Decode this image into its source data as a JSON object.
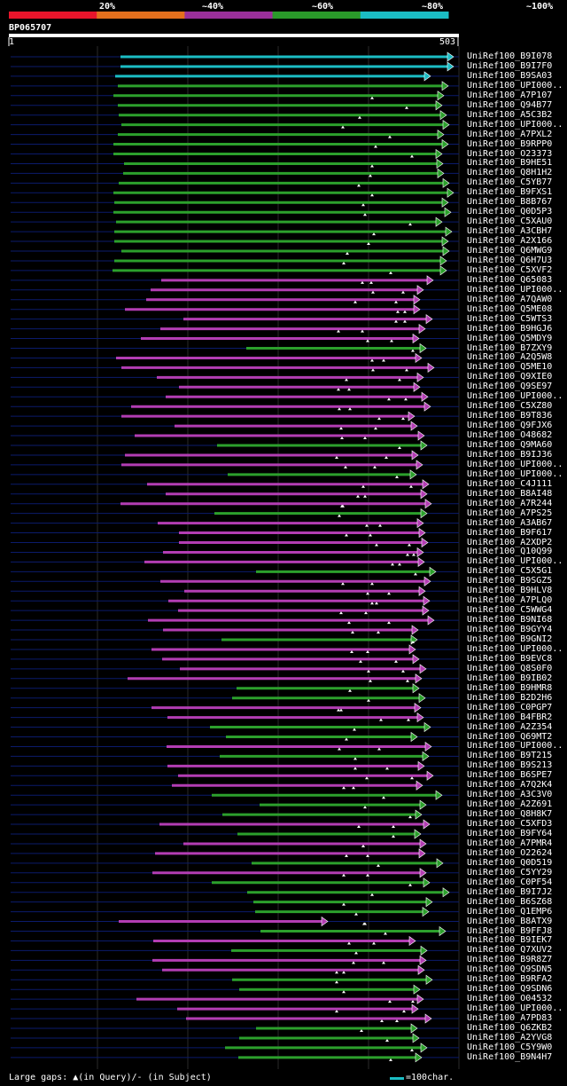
{
  "query": {
    "name": "BP065707",
    "start": "1",
    "end": "503"
  },
  "identity_scale": {
    "labels": [
      "20%",
      "~40%",
      "~60%",
      "~80%",
      "~100%"
    ],
    "colors": [
      "#e8152b",
      "#e4701d",
      "#9a2f9a",
      "#2a9a2a",
      "#1bbdc4"
    ]
  },
  "colors": {
    "cyan": "#1bbdc4",
    "green": "#2ca02c",
    "purple": "#b33db3",
    "line": "#0b1b6b",
    "grid": "#2a2a2a"
  },
  "hits": [
    {
      "id": "UniRef100_B9I078",
      "c": "cyan"
    },
    {
      "id": "UniRef100_B9I7F0",
      "c": "cyan"
    },
    {
      "id": "UniRef100_B9SA03",
      "c": "cyan"
    },
    {
      "id": "UniRef100_UPI000..",
      "c": "green"
    },
    {
      "id": "UniRef100_A7P107",
      "c": "green"
    },
    {
      "id": "UniRef100_Q94B77",
      "c": "green"
    },
    {
      "id": "UniRef100_A5C3B2",
      "c": "green"
    },
    {
      "id": "UniRef100_UPI000..",
      "c": "green"
    },
    {
      "id": "UniRef100_A7PXL2",
      "c": "green"
    },
    {
      "id": "UniRef100_B9RPP0",
      "c": "green"
    },
    {
      "id": "UniRef100_O23373",
      "c": "green"
    },
    {
      "id": "UniRef100_B9HE51",
      "c": "green"
    },
    {
      "id": "UniRef100_Q8H1H2",
      "c": "green"
    },
    {
      "id": "UniRef100_C5YB77",
      "c": "green"
    },
    {
      "id": "UniRef100_B9FXS1",
      "c": "green"
    },
    {
      "id": "UniRef100_B8B767",
      "c": "green"
    },
    {
      "id": "UniRef100_Q0D5P3",
      "c": "green"
    },
    {
      "id": "UniRef100_C5XAU0",
      "c": "green"
    },
    {
      "id": "UniRef100_A3CBH7",
      "c": "green"
    },
    {
      "id": "UniRef100_A2X166",
      "c": "green"
    },
    {
      "id": "UniRef100_Q6MWG9",
      "c": "green"
    },
    {
      "id": "UniRef100_Q6H7U3",
      "c": "green"
    },
    {
      "id": "UniRef100_C5XVF2",
      "c": "green"
    },
    {
      "id": "UniRef100_Q65083",
      "c": "purple"
    },
    {
      "id": "UniRef100_UPI000..",
      "c": "purple"
    },
    {
      "id": "UniRef100_A7QAW0",
      "c": "purple"
    },
    {
      "id": "UniRef100_Q5ME08",
      "c": "purple"
    },
    {
      "id": "UniRef100_C5WTS3",
      "c": "purple"
    },
    {
      "id": "UniRef100_B9HGJ6",
      "c": "purple"
    },
    {
      "id": "UniRef100_Q5MDY9",
      "c": "purple"
    },
    {
      "id": "UniRef100_B7ZXY9",
      "c": "green"
    },
    {
      "id": "UniRef100_A2Q5W8",
      "c": "purple"
    },
    {
      "id": "UniRef100_Q5ME10",
      "c": "purple"
    },
    {
      "id": "UniRef100_Q9XIE0",
      "c": "purple"
    },
    {
      "id": "UniRef100_Q9SE97",
      "c": "purple"
    },
    {
      "id": "UniRef100_UPI000..",
      "c": "purple"
    },
    {
      "id": "UniRef100_C5XZ80",
      "c": "purple"
    },
    {
      "id": "UniRef100_B9T836",
      "c": "purple"
    },
    {
      "id": "UniRef100_Q9FJX6",
      "c": "purple"
    },
    {
      "id": "UniRef100_O48682",
      "c": "purple"
    },
    {
      "id": "UniRef100_Q9MA60",
      "c": "green"
    },
    {
      "id": "UniRef100_B9IJ36",
      "c": "purple"
    },
    {
      "id": "UniRef100_UPI000..",
      "c": "purple"
    },
    {
      "id": "UniRef100_UPI000..",
      "c": "green"
    },
    {
      "id": "UniRef100_C4J111",
      "c": "purple"
    },
    {
      "id": "UniRef100_B8AI48",
      "c": "purple"
    },
    {
      "id": "UniRef100_A7R244",
      "c": "purple"
    },
    {
      "id": "UniRef100_A7PS25",
      "c": "green"
    },
    {
      "id": "UniRef100_A3AB67",
      "c": "purple"
    },
    {
      "id": "UniRef100_B9F617",
      "c": "purple"
    },
    {
      "id": "UniRef100_A2XDP2",
      "c": "purple"
    },
    {
      "id": "UniRef100_Q10Q99",
      "c": "purple"
    },
    {
      "id": "UniRef100_UPI000..",
      "c": "purple"
    },
    {
      "id": "UniRef100_C5X5G1",
      "c": "green"
    },
    {
      "id": "UniRef100_B9SGZ5",
      "c": "purple"
    },
    {
      "id": "UniRef100_B9HLV8",
      "c": "purple"
    },
    {
      "id": "UniRef100_A7PLQ0",
      "c": "purple"
    },
    {
      "id": "UniRef100_C5WWG4",
      "c": "purple"
    },
    {
      "id": "UniRef100_B9NI68",
      "c": "purple"
    },
    {
      "id": "UniRef100_B9GYY4",
      "c": "purple"
    },
    {
      "id": "UniRef100_B9GNI2",
      "c": "green"
    },
    {
      "id": "UniRef100_UPI000..",
      "c": "purple"
    },
    {
      "id": "UniRef100_B9EVC8",
      "c": "purple"
    },
    {
      "id": "UniRef100_Q8S0F0",
      "c": "purple"
    },
    {
      "id": "UniRef100_B9IB02",
      "c": "purple"
    },
    {
      "id": "UniRef100_B9HMR8",
      "c": "green"
    },
    {
      "id": "UniRef100_B2D2H6",
      "c": "green"
    },
    {
      "id": "UniRef100_C0PGP7",
      "c": "purple"
    },
    {
      "id": "UniRef100_B4FBR2",
      "c": "purple"
    },
    {
      "id": "UniRef100_A2Z354",
      "c": "green"
    },
    {
      "id": "UniRef100_Q69MT2",
      "c": "green"
    },
    {
      "id": "UniRef100_UPI000..",
      "c": "purple"
    },
    {
      "id": "UniRef100_B9T215",
      "c": "green"
    },
    {
      "id": "UniRef100_B9S213",
      "c": "purple"
    },
    {
      "id": "UniRef100_B6SPE7",
      "c": "purple"
    },
    {
      "id": "UniRef100_A7Q2K4",
      "c": "purple"
    },
    {
      "id": "UniRef100_A3C3V0",
      "c": "green"
    },
    {
      "id": "UniRef100_A2Z691",
      "c": "green"
    },
    {
      "id": "UniRef100_Q8H8K7",
      "c": "green"
    },
    {
      "id": "UniRef100_C5XFD3",
      "c": "purple"
    },
    {
      "id": "UniRef100_B9FY64",
      "c": "green"
    },
    {
      "id": "UniRef100_A7PMR4",
      "c": "purple"
    },
    {
      "id": "UniRef100_O22624",
      "c": "purple"
    },
    {
      "id": "UniRef100_Q0D519",
      "c": "green"
    },
    {
      "id": "UniRef100_C5YY29",
      "c": "purple"
    },
    {
      "id": "UniRef100_C0PF54",
      "c": "green"
    },
    {
      "id": "UniRef100_B9I7J2",
      "c": "green"
    },
    {
      "id": "UniRef100_B6SZ68",
      "c": "green"
    },
    {
      "id": "UniRef100_Q1EMP6",
      "c": "green"
    },
    {
      "id": "UniRef100_B8ATX9",
      "c": "purple"
    },
    {
      "id": "UniRef100_B9FFJ8",
      "c": "green"
    },
    {
      "id": "UniRef100_B9IEK7",
      "c": "purple"
    },
    {
      "id": "UniRef100_Q7XUV2",
      "c": "green"
    },
    {
      "id": "UniRef100_B9R8Z7",
      "c": "purple"
    },
    {
      "id": "UniRef100_Q9SDN5",
      "c": "purple"
    },
    {
      "id": "UniRef100_B9RFA2",
      "c": "green"
    },
    {
      "id": "UniRef100_Q9SDN6",
      "c": "green"
    },
    {
      "id": "UniRef100_O04532",
      "c": "purple"
    },
    {
      "id": "UniRef100_UPI000..",
      "c": "purple"
    },
    {
      "id": "UniRef100_A7PD83",
      "c": "purple"
    },
    {
      "id": "UniRef100_Q6ZKB2",
      "c": "green"
    },
    {
      "id": "UniRef100_A2YVG8",
      "c": "green"
    },
    {
      "id": "UniRef100_C5Y9W0",
      "c": "green"
    },
    {
      "id": "UniRef100_B9N4H7",
      "c": "green"
    }
  ],
  "footer": {
    "left": "Large gaps: ▲(in Query)/- (in Subject)",
    "right": "=100char."
  }
}
